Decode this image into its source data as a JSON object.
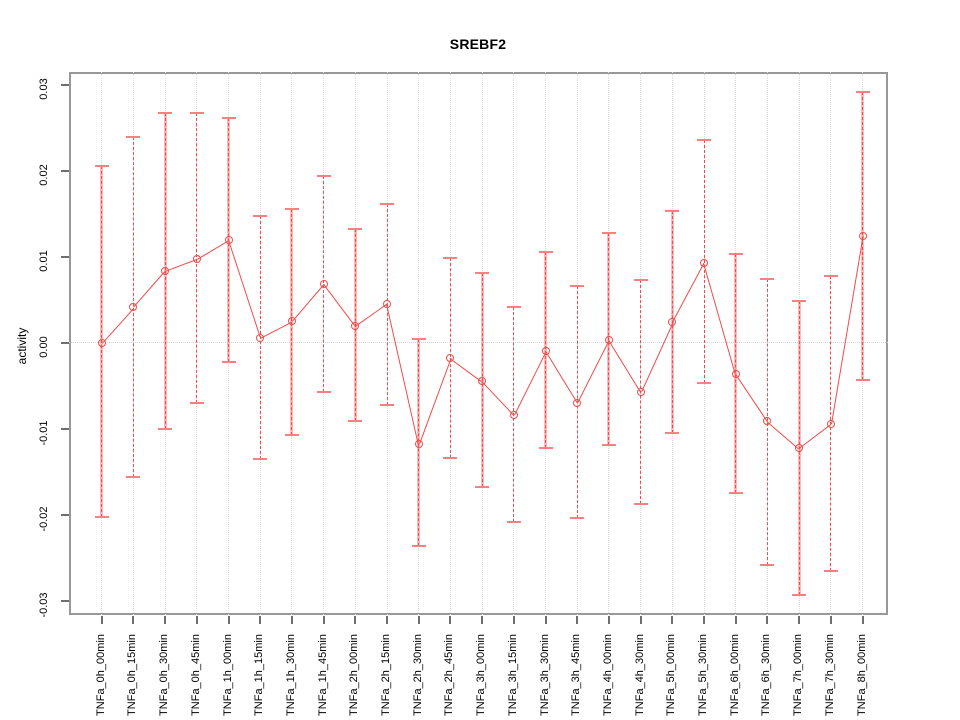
{
  "title": "SREBF2",
  "y_axis": {
    "label": "activity",
    "tick_labels": [
      "-0.03",
      "-0.02",
      "-0.01",
      "0.00",
      "0.01",
      "0.02",
      "0.03"
    ]
  },
  "chart_data": {
    "type": "line",
    "title": "SREBF2",
    "xlabel": "",
    "ylabel": "activity",
    "ylim": [
      -0.03,
      0.03
    ],
    "yticks": [
      -0.03,
      -0.02,
      -0.01,
      0,
      0.01,
      0.02,
      0.03
    ],
    "grid": "vertical dotted gridlines at each category; dotted horizontal line at y=0",
    "legend_position": "none",
    "marker": "open-circle",
    "error_bars": true,
    "categories": [
      "TNFa_0h_00min",
      "TNFa_0h_15min",
      "TNFa_0h_30min",
      "TNFa_0h_45min",
      "TNFa_1h_00min",
      "TNFa_1h_15min",
      "TNFa_1h_30min",
      "TNFa_1h_45min",
      "TNFa_2h_00min",
      "TNFa_2h_15min",
      "TNFa_2h_30min",
      "TNFa_2h_45min",
      "TNFa_3h_00min",
      "TNFa_3h_15min",
      "TNFa_3h_30min",
      "TNFa_3h_45min",
      "TNFa_4h_00min",
      "TNFa_4h_30min",
      "TNFa_5h_00min",
      "TNFa_5h_30min",
      "TNFa_6h_00min",
      "TNFa_6h_30min",
      "TNFa_7h_00min",
      "TNFa_7h_30min",
      "TNFa_8h_00min"
    ],
    "series": [
      {
        "name": "activity",
        "values": [
          0.0,
          0.0041,
          0.0083,
          0.0097,
          0.0119,
          0.0006,
          0.0025,
          0.0068,
          0.0019,
          0.0045,
          -0.0118,
          -0.0018,
          -0.0045,
          -0.0084,
          -0.001,
          -0.007,
          0.0003,
          -0.0057,
          0.0024,
          0.0093,
          -0.0036,
          -0.0091,
          -0.0123,
          -0.0095,
          0.0124
        ],
        "error_upper": [
          0.0206,
          0.0239,
          0.0267,
          0.0267,
          0.0261,
          0.0147,
          0.0156,
          0.0194,
          0.0132,
          0.0161,
          0.0004,
          0.0098,
          0.0081,
          0.0042,
          0.0105,
          0.0066,
          0.0127,
          0.0073,
          0.0153,
          0.0236,
          0.0103,
          0.0074,
          0.0049,
          0.0077,
          0.0292
        ],
        "error_lower": [
          -0.0203,
          -0.0156,
          -0.01,
          -0.007,
          -0.0022,
          -0.0135,
          -0.0107,
          -0.0057,
          -0.0091,
          -0.0072,
          -0.0236,
          -0.0134,
          -0.0168,
          -0.0208,
          -0.0123,
          -0.0204,
          -0.0119,
          -0.0187,
          -0.0105,
          -0.0047,
          -0.0175,
          -0.0259,
          -0.0293,
          -0.0266,
          -0.0043
        ]
      }
    ],
    "colors": {
      "series": "#f14b4b",
      "error_bar_pale": "#f97878",
      "error_bar_cap": "#f8807f",
      "gridline": "#dcdcdc",
      "zero_line": "#d4d4d4",
      "axis_box": "#989898",
      "tick": "#6e6e6e",
      "text": "#000000"
    }
  }
}
